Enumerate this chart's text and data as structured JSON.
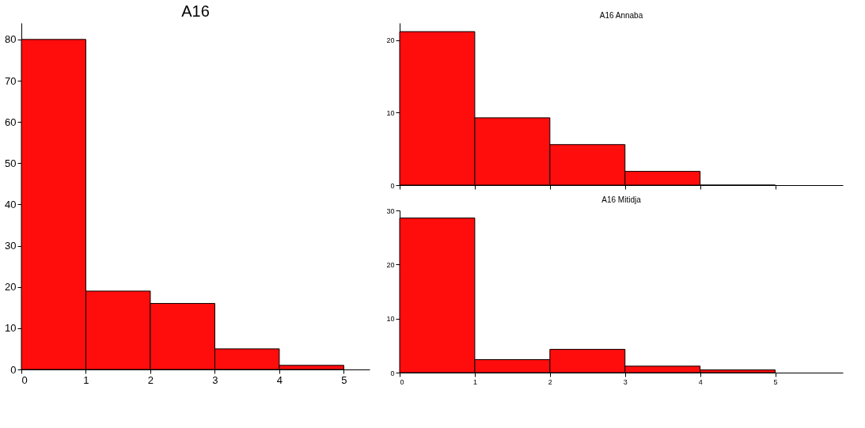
{
  "chart_data": [
    {
      "type": "histogram",
      "title": "A16",
      "bins": [
        0,
        1,
        2,
        3,
        4,
        5
      ],
      "values": [
        80,
        19,
        16,
        5,
        1
      ],
      "color": "#ff0d0d",
      "xlim": [
        0,
        5.4
      ],
      "ylim": [
        0,
        84
      ],
      "xticks": [
        0,
        1,
        2,
        3,
        4,
        5
      ],
      "yticks": [
        0,
        10,
        20,
        30,
        40,
        50,
        60,
        70,
        80
      ],
      "grid": false
    },
    {
      "type": "histogram",
      "title": "A16  Annaba",
      "bins": [
        0,
        1,
        2,
        3,
        4,
        5
      ],
      "values": [
        21.2,
        9.3,
        5.6,
        1.9,
        0
      ],
      "color": "#ff0d0d",
      "xlim": [
        0,
        5.9
      ],
      "ylim": [
        0,
        22.4
      ],
      "xticks": [
        0,
        1,
        2,
        3,
        4,
        5
      ],
      "yticks": [
        0,
        10,
        20
      ],
      "tick_labels": "y",
      "grid": false
    },
    {
      "type": "histogram",
      "title": "A16  Mitidja",
      "bins": [
        0,
        1,
        2,
        3,
        4,
        5
      ],
      "values": [
        28.6,
        2.4,
        4.3,
        1.2,
        0.5
      ],
      "color": "#ff0d0d",
      "xlim": [
        0,
        5.9
      ],
      "ylim": [
        0,
        30
      ],
      "xticks": [
        0,
        1,
        2,
        3,
        4,
        5
      ],
      "yticks": [
        0,
        10,
        20,
        30
      ],
      "grid": false
    }
  ]
}
